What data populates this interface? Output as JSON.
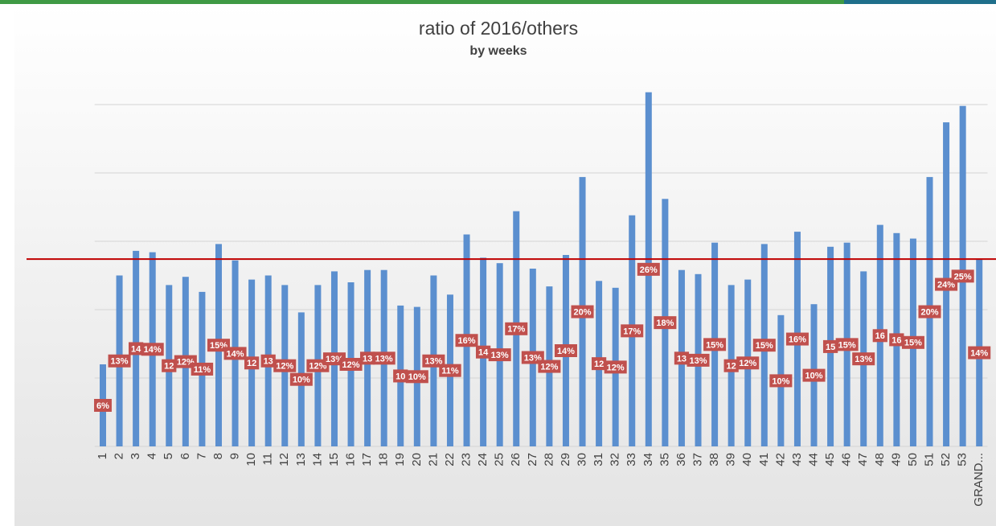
{
  "chart_data": {
    "type": "bar",
    "title": "ratio of 2016/others",
    "subtitle": "by weeks",
    "categories": [
      "1",
      "2",
      "3",
      "4",
      "5",
      "6",
      "7",
      "8",
      "9",
      "10",
      "11",
      "12",
      "13",
      "14",
      "15",
      "16",
      "17",
      "18",
      "19",
      "20",
      "21",
      "22",
      "23",
      "24",
      "25",
      "26",
      "27",
      "28",
      "29",
      "30",
      "31",
      "32",
      "33",
      "34",
      "35",
      "36",
      "37",
      "38",
      "39",
      "40",
      "41",
      "42",
      "43",
      "44",
      "45",
      "46",
      "47",
      "48",
      "49",
      "50",
      "51",
      "52",
      "53",
      "GRAND..."
    ],
    "values": [
      6,
      12.5,
      14.3,
      14.2,
      11.8,
      12.4,
      11.3,
      14.8,
      13.6,
      12.2,
      12.5,
      11.8,
      9.8,
      11.8,
      12.8,
      12,
      12.9,
      12.9,
      10.3,
      10.2,
      12.5,
      11.1,
      15.5,
      13.8,
      13.4,
      17.2,
      13,
      11.7,
      14,
      19.7,
      12.1,
      11.6,
      16.9,
      25.9,
      18.1,
      12.9,
      12.6,
      14.9,
      11.8,
      12.2,
      14.8,
      9.6,
      15.7,
      10.4,
      14.6,
      14.9,
      12.8,
      16.2,
      15.6,
      15.2,
      19.7,
      23.7,
      24.9,
      13.7
    ],
    "value_labels": [
      "6%",
      "13%",
      "14",
      "14%",
      "12",
      "12%",
      "11%",
      "15%",
      "14%",
      "12",
      "13",
      "12%",
      "10%",
      "12%",
      "13%",
      "12%",
      "13",
      "13%",
      "10",
      "10%",
      "13%",
      "11%",
      "16%",
      "14",
      "13%",
      "17%",
      "13%",
      "12%",
      "14%",
      "20%",
      "12",
      "12%",
      "17%",
      "26%",
      "18%",
      "13",
      "13%",
      "15%",
      "12",
      "12%",
      "15%",
      "10%",
      "16%",
      "10%",
      "15",
      "15%",
      "13%",
      "16",
      "16",
      "15%",
      "20%",
      "24%",
      "25%",
      "14%"
    ],
    "color": "#5b8fcf",
    "label_color": "#c0504d",
    "ylim": [
      0,
      30
    ],
    "yticks": [
      0,
      5,
      10,
      15,
      20,
      25
    ],
    "grid": true,
    "reference_line": {
      "value": 13.7,
      "color": "#c00000"
    }
  }
}
